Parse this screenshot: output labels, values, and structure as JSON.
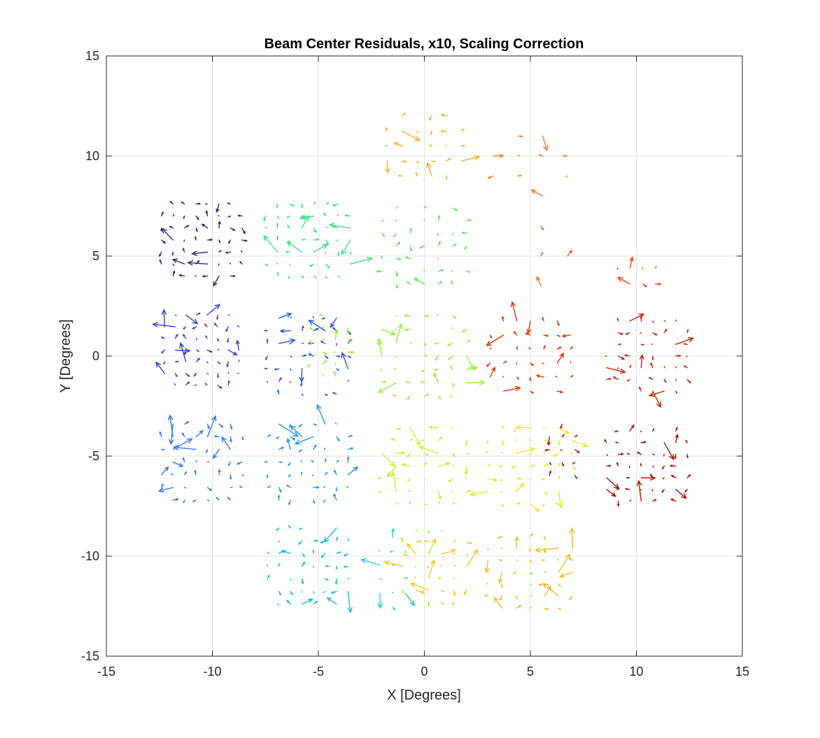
{
  "chart_data": {
    "type": "quiver",
    "title": "Beam Center Residuals, x10, Scaling Correction",
    "xlabel": "X [Degrees]",
    "ylabel": "Y [Degrees]",
    "xlim": [
      -15,
      15
    ],
    "ylim": [
      -15,
      15
    ],
    "xticks": [
      "-15",
      "-10",
      "-5",
      "0",
      "5",
      "10",
      "15"
    ],
    "yticks": [
      "-15",
      "-10",
      "-5",
      "0",
      "5",
      "10",
      "15"
    ],
    "grid": true,
    "vector_scale": 10,
    "clusters": [
      {
        "cx": -10.5,
        "cy": 5.8,
        "color": "#2a2a86",
        "nx": 8,
        "ny": 7,
        "w": 3.8,
        "h": 3.6
      },
      {
        "cx": -5.5,
        "cy": 5.8,
        "color": "#3ee08a",
        "nx": 8,
        "ny": 7,
        "w": 4.0,
        "h": 3.6
      },
      {
        "cx": 0.0,
        "cy": 5.5,
        "color": "#60e060",
        "nx": 7,
        "ny": 7,
        "w": 4.0,
        "h": 3.8
      },
      {
        "cx": 0.0,
        "cy": 10.5,
        "color": "#ffaa22",
        "nx": 6,
        "ny": 5,
        "w": 3.5,
        "h": 3.0
      },
      {
        "cx": 5.0,
        "cy": 9.5,
        "color": "#ff7722",
        "nx": 4,
        "ny": 4,
        "w": 3.5,
        "h": 3.0
      },
      {
        "cx": 5.5,
        "cy": 5.0,
        "color": "#ff6622",
        "nx": 3,
        "ny": 3,
        "w": 2.5,
        "h": 3.0
      },
      {
        "cx": 10.0,
        "cy": 4.0,
        "color": "#ee4411",
        "nx": 4,
        "ny": 2,
        "w": 1.8,
        "h": 0.8
      },
      {
        "cx": -10.5,
        "cy": 0.3,
        "color": "#3344cc",
        "nx": 8,
        "ny": 7,
        "w": 3.5,
        "h": 3.5
      },
      {
        "cx": -5.5,
        "cy": 0.0,
        "color": "#2255dd",
        "nx": 8,
        "ny": 7,
        "w": 3.8,
        "h": 3.8
      },
      {
        "cx": -4.5,
        "cy": 0.5,
        "color": "#88ee33",
        "nx": 4,
        "ny": 6,
        "w": 1.8,
        "h": 3.0
      },
      {
        "cx": 0.0,
        "cy": 0.0,
        "color": "#99ee33",
        "nx": 7,
        "ny": 7,
        "w": 4.0,
        "h": 4.0
      },
      {
        "cx": 5.0,
        "cy": 0.0,
        "color": "#dd3300",
        "nx": 7,
        "ny": 6,
        "w": 3.8,
        "h": 3.5
      },
      {
        "cx": 10.5,
        "cy": 0.0,
        "color": "#cc2200",
        "nx": 8,
        "ny": 7,
        "w": 3.8,
        "h": 3.5
      },
      {
        "cx": -10.5,
        "cy": -5.3,
        "color": "#3377ee",
        "nx": 8,
        "ny": 7,
        "w": 3.8,
        "h": 3.8
      },
      {
        "cx": -5.5,
        "cy": -5.3,
        "color": "#2299ee",
        "nx": 8,
        "ny": 7,
        "w": 3.8,
        "h": 3.8
      },
      {
        "cx": 0.0,
        "cy": -5.5,
        "color": "#ccee33",
        "nx": 7,
        "ny": 7,
        "w": 4.0,
        "h": 3.8
      },
      {
        "cx": 5.0,
        "cy": -5.5,
        "color": "#ddee22",
        "nx": 7,
        "ny": 7,
        "w": 4.0,
        "h": 3.8
      },
      {
        "cx": 6.5,
        "cy": -5.0,
        "color": "#bb1100",
        "nx": 3,
        "ny": 6,
        "w": 1.2,
        "h": 3.2
      },
      {
        "cx": 10.5,
        "cy": -5.5,
        "color": "#aa1100",
        "nx": 8,
        "ny": 7,
        "w": 3.8,
        "h": 3.5
      },
      {
        "cx": -5.5,
        "cy": -10.5,
        "color": "#11bbdd",
        "nx": 8,
        "ny": 7,
        "w": 3.8,
        "h": 3.8
      },
      {
        "cx": -1.5,
        "cy": -10.8,
        "color": "#22ccdd",
        "nx": 3,
        "ny": 6,
        "w": 1.2,
        "h": 3.5
      },
      {
        "cx": 0.5,
        "cy": -10.5,
        "color": "#eecc22",
        "nx": 6,
        "ny": 7,
        "w": 3.0,
        "h": 3.6
      },
      {
        "cx": 5.0,
        "cy": -10.8,
        "color": "#eebb22",
        "nx": 7,
        "ny": 7,
        "w": 4.0,
        "h": 3.6
      }
    ]
  }
}
